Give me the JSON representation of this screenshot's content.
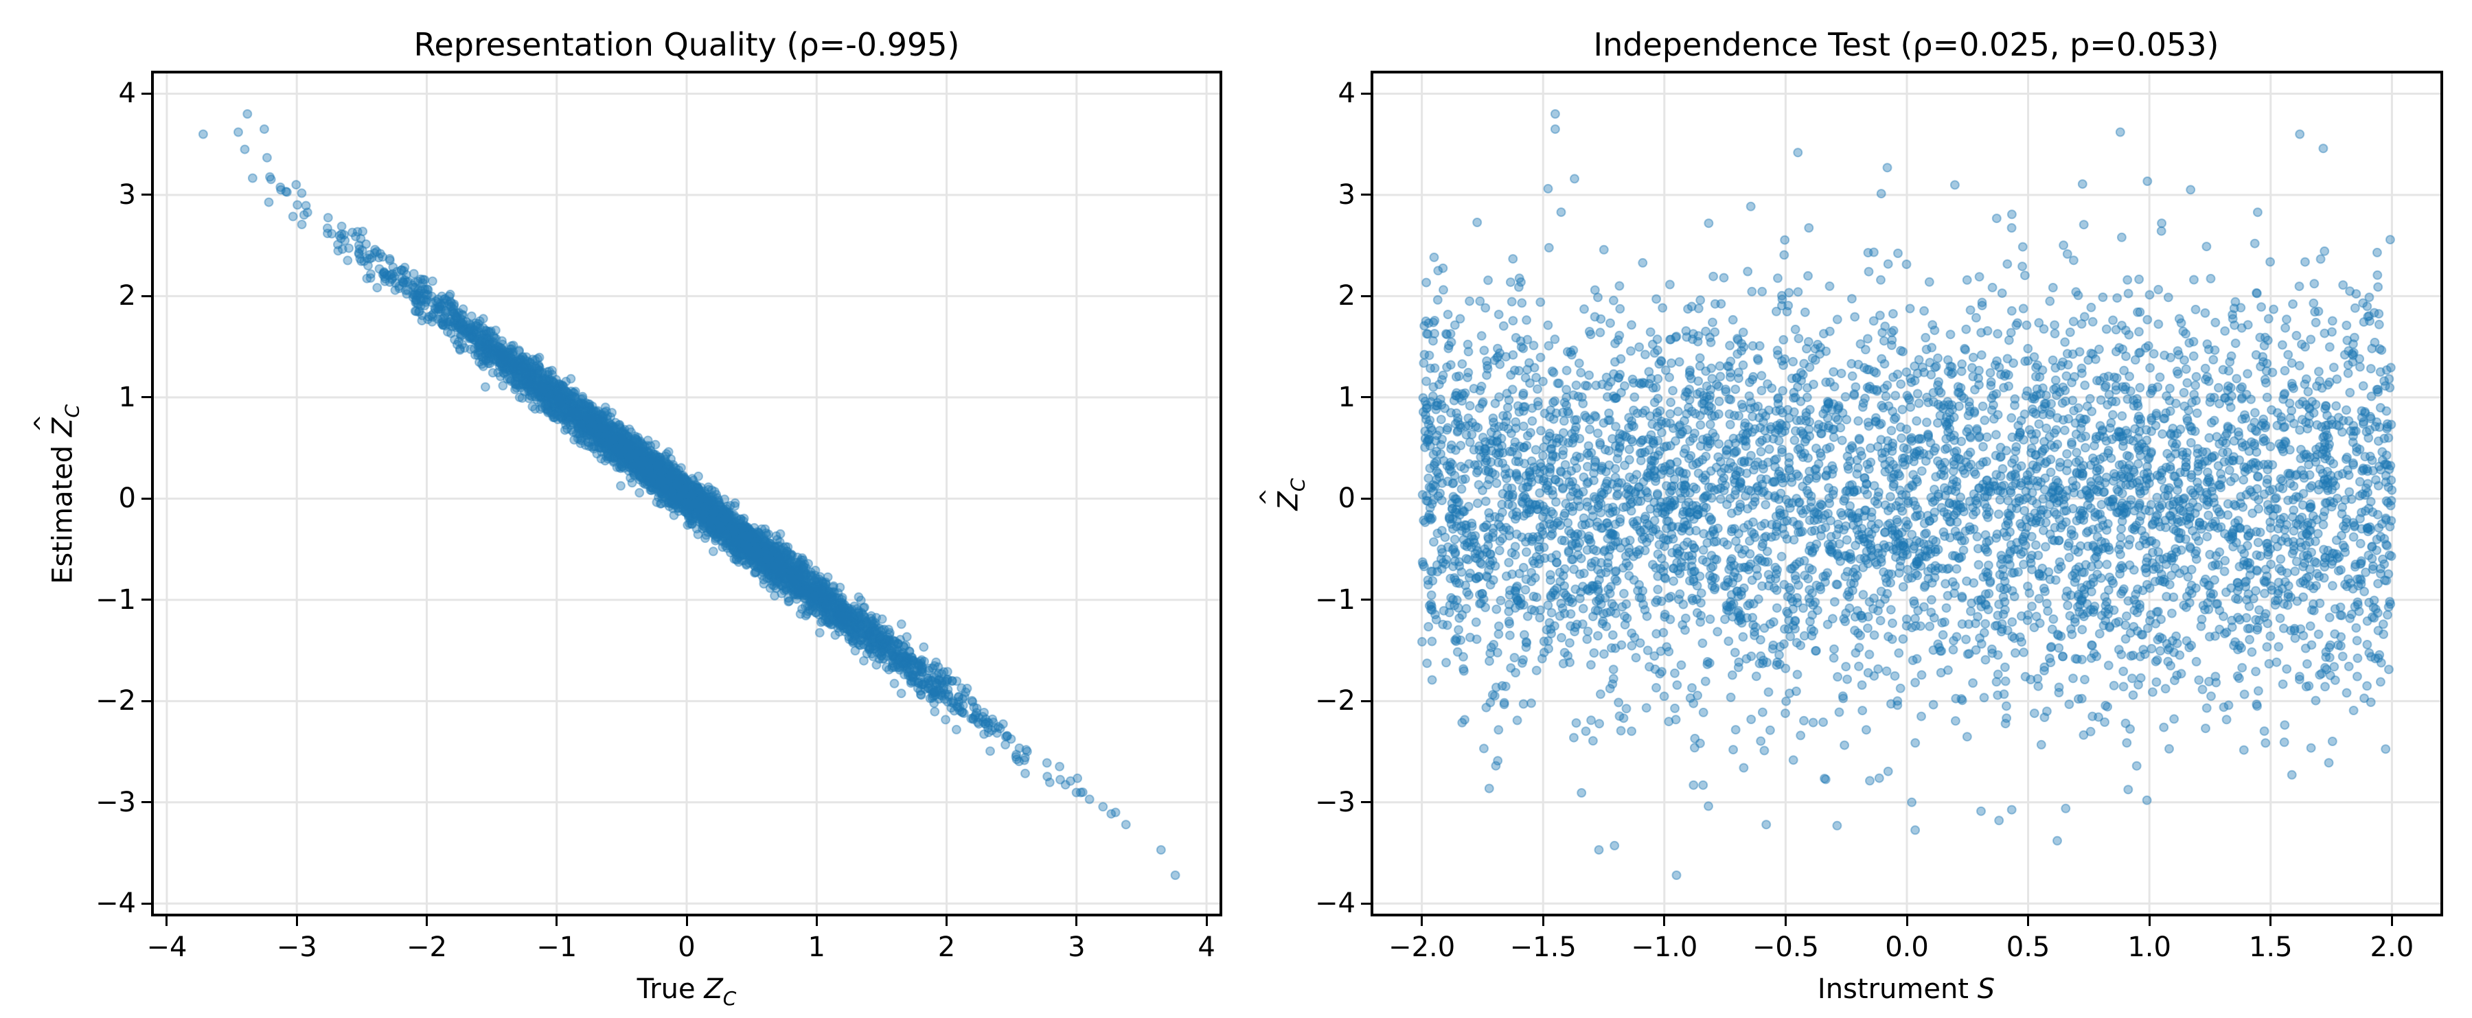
{
  "figure": {
    "left_panel": {
      "title": "Representation Quality (ρ=-0.995)",
      "xlabel_prefix": "True ",
      "xlabel_var": "Z",
      "xlabel_sub": "C",
      "ylabel_prefix": "Estimated ",
      "ylabel_var": "Z",
      "ylabel_sub": "C",
      "xticks": [
        "−4",
        "−3",
        "−2",
        "−1",
        "0",
        "1",
        "2",
        "3",
        "4"
      ],
      "yticks": [
        "4",
        "3",
        "2",
        "1",
        "0",
        "−1",
        "−2",
        "−3",
        "−4"
      ]
    },
    "right_panel": {
      "title": "Independence Test (ρ=0.025, p=0.053)",
      "xlabel_prefix": "Instrument ",
      "xlabel_var": "S",
      "ylabel_var": "Z",
      "ylabel_sub": "C",
      "xticks": [
        "−2.0",
        "−1.5",
        "−1.0",
        "−0.5",
        "0.0",
        "0.5",
        "1.0",
        "1.5",
        "2.0"
      ],
      "yticks": [
        "4",
        "3",
        "2",
        "1",
        "0",
        "−1",
        "−2",
        "−3",
        "−4"
      ]
    }
  },
  "colors": {
    "marker": "#1f77b4",
    "marker_alpha": 0.4,
    "grid": "#e5e5e5",
    "axis": "#000000"
  },
  "chart_data": [
    {
      "type": "scatter",
      "title": "Representation Quality (ρ=-0.995)",
      "xlabel": "True Z_C",
      "ylabel": "Estimated Ẑ_C",
      "xlim": [
        -4.1,
        4.1
      ],
      "ylim": [
        -4.1,
        4.2
      ],
      "xticks": [
        -4,
        -3,
        -2,
        -1,
        0,
        1,
        2,
        3,
        4
      ],
      "yticks": [
        -4,
        -3,
        -2,
        -1,
        0,
        1,
        2,
        3,
        4
      ],
      "grid": true,
      "legend": null,
      "correlation": -0.995,
      "relationship": "y ≈ -0.97·x + 0.02, tight linear band",
      "n_points_approx": 5000,
      "x_distribution": "normal(0,1)",
      "residual_sd": 0.1,
      "notable_points": [
        {
          "x": -3.72,
          "y": 3.6
        },
        {
          "x": -3.45,
          "y": 3.62
        },
        {
          "x": -3.38,
          "y": 3.8
        },
        {
          "x": -3.4,
          "y": 3.45
        },
        {
          "x": -3.25,
          "y": 3.65
        },
        {
          "x": 3.1,
          "y": -2.97
        },
        {
          "x": 3.3,
          "y": -3.1
        },
        {
          "x": 3.38,
          "y": -3.22
        },
        {
          "x": 3.65,
          "y": -3.47
        },
        {
          "x": 3.76,
          "y": -3.72
        }
      ]
    },
    {
      "type": "scatter",
      "title": "Independence Test (ρ=0.025, p=0.053)",
      "xlabel": "Instrument S",
      "ylabel": "Ẑ_C",
      "xlim": [
        -2.2,
        2.2
      ],
      "ylim": [
        -4.1,
        4.2
      ],
      "xticks": [
        -2.0,
        -1.5,
        -1.0,
        -0.5,
        0.0,
        0.5,
        1.0,
        1.5,
        2.0
      ],
      "yticks": [
        -4,
        -3,
        -2,
        -1,
        0,
        1,
        2,
        3,
        4
      ],
      "grid": true,
      "legend": null,
      "correlation": 0.025,
      "p_value": 0.053,
      "n_points_approx": 5000,
      "x_distribution": "uniform(-2,2)",
      "y_distribution": "normal(0,1), no dependence on x",
      "notable_points": [
        {
          "x": -1.45,
          "y": 3.8
        },
        {
          "x": -1.45,
          "y": 3.65
        },
        {
          "x": 0.88,
          "y": 3.62
        },
        {
          "x": 1.62,
          "y": 3.6
        },
        {
          "x": -0.95,
          "y": -3.72
        },
        {
          "x": -1.27,
          "y": -3.47
        },
        {
          "x": 0.62,
          "y": -3.38
        },
        {
          "x": -0.58,
          "y": -3.22
        },
        {
          "x": 0.38,
          "y": -3.18
        },
        {
          "x": 0.99,
          "y": -2.98
        },
        {
          "x": 0.02,
          "y": -3.0
        }
      ]
    }
  ]
}
